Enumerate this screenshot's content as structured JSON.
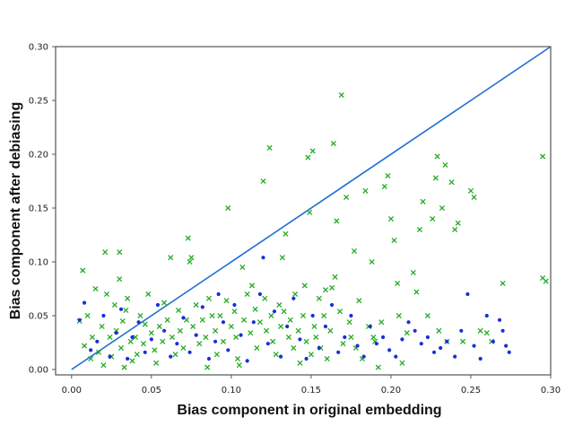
{
  "chart_data": {
    "type": "scatter",
    "title": "",
    "xlabel": "Bias component in original embedding",
    "ylabel": "Bias component after debiasing",
    "xlim": [
      -0.01,
      0.3
    ],
    "ylim": [
      -0.005,
      0.3
    ],
    "x_ticks": [
      0.0,
      0.05,
      0.1,
      0.15,
      0.2,
      0.25,
      0.3
    ],
    "x_tick_labels": [
      "0.00",
      "0.05",
      "0.10",
      "0.15",
      "0.20",
      "0.25",
      "0.30"
    ],
    "y_ticks": [
      0.0,
      0.05,
      0.1,
      0.15,
      0.2,
      0.25,
      0.3
    ],
    "y_tick_labels": [
      "0.00",
      "0.05",
      "0.10",
      "0.15",
      "0.20",
      "0.25",
      "0.30"
    ],
    "grid": false,
    "legend": "none",
    "reference_line": {
      "x": [
        0.0,
        0.3
      ],
      "y": [
        0.0,
        0.3
      ],
      "color": "#1f6fd0"
    },
    "series": [
      {
        "marker": "x",
        "color": "#22aa22",
        "points": [
          [
            0.005,
            0.045
          ],
          [
            0.007,
            0.092
          ],
          [
            0.008,
            0.022
          ],
          [
            0.01,
            0.05
          ],
          [
            0.012,
            0.01
          ],
          [
            0.013,
            0.03
          ],
          [
            0.015,
            0.075
          ],
          [
            0.017,
            0.016
          ],
          [
            0.019,
            0.04
          ],
          [
            0.02,
            0.004
          ],
          [
            0.021,
            0.109
          ],
          [
            0.022,
            0.07
          ],
          [
            0.024,
            0.03
          ],
          [
            0.025,
            0.012
          ],
          [
            0.027,
            0.06
          ],
          [
            0.028,
            0.036
          ],
          [
            0.03,
            0.109
          ],
          [
            0.03,
            0.084
          ],
          [
            0.031,
            0.02
          ],
          [
            0.032,
            0.045
          ],
          [
            0.033,
            0.002
          ],
          [
            0.034,
            0.055
          ],
          [
            0.035,
            0.066
          ],
          [
            0.037,
            0.026
          ],
          [
            0.038,
            0.008
          ],
          [
            0.04,
            0.03
          ],
          [
            0.041,
            0.014
          ],
          [
            0.043,
            0.05
          ],
          [
            0.045,
            0.024
          ],
          [
            0.046,
            0.042
          ],
          [
            0.048,
            0.07
          ],
          [
            0.05,
            0.034
          ],
          [
            0.052,
            0.018
          ],
          [
            0.053,
            0.006
          ],
          [
            0.055,
            0.04
          ],
          [
            0.057,
            0.026
          ],
          [
            0.058,
            0.062
          ],
          [
            0.06,
            0.046
          ],
          [
            0.062,
            0.104
          ],
          [
            0.063,
            0.03
          ],
          [
            0.065,
            0.014
          ],
          [
            0.067,
            0.055
          ],
          [
            0.068,
            0.036
          ],
          [
            0.07,
            0.02
          ],
          [
            0.072,
            0.046
          ],
          [
            0.073,
            0.122
          ],
          [
            0.074,
            0.1
          ],
          [
            0.075,
            0.104
          ],
          [
            0.076,
            0.04
          ],
          [
            0.078,
            0.06
          ],
          [
            0.08,
            0.024
          ],
          [
            0.082,
            0.046
          ],
          [
            0.084,
            0.03
          ],
          [
            0.085,
            0.002
          ],
          [
            0.086,
            0.066
          ],
          [
            0.088,
            0.05
          ],
          [
            0.09,
            0.036
          ],
          [
            0.091,
            0.014
          ],
          [
            0.093,
            0.05
          ],
          [
            0.095,
            0.026
          ],
          [
            0.097,
            0.064
          ],
          [
            0.098,
            0.15
          ],
          [
            0.1,
            0.04
          ],
          [
            0.102,
            0.054
          ],
          [
            0.103,
            0.03
          ],
          [
            0.104,
            0.01
          ],
          [
            0.105,
            0.004
          ],
          [
            0.107,
            0.095
          ],
          [
            0.108,
            0.046
          ],
          [
            0.11,
            0.07
          ],
          [
            0.112,
            0.034
          ],
          [
            0.113,
            0.078
          ],
          [
            0.115,
            0.056
          ],
          [
            0.116,
            0.02
          ],
          [
            0.118,
            0.044
          ],
          [
            0.12,
            0.175
          ],
          [
            0.121,
            0.066
          ],
          [
            0.122,
            0.036
          ],
          [
            0.124,
            0.206
          ],
          [
            0.125,
            0.05
          ],
          [
            0.126,
            0.026
          ],
          [
            0.128,
            0.014
          ],
          [
            0.13,
            0.06
          ],
          [
            0.131,
            0.04
          ],
          [
            0.132,
            0.104
          ],
          [
            0.133,
            0.054
          ],
          [
            0.134,
            0.126
          ],
          [
            0.136,
            0.03
          ],
          [
            0.137,
            0.046
          ],
          [
            0.139,
            0.02
          ],
          [
            0.14,
            0.07
          ],
          [
            0.142,
            0.036
          ],
          [
            0.143,
            0.006
          ],
          [
            0.145,
            0.05
          ],
          [
            0.146,
            0.078
          ],
          [
            0.147,
            0.026
          ],
          [
            0.148,
            0.197
          ],
          [
            0.149,
            0.146
          ],
          [
            0.15,
            0.014
          ],
          [
            0.151,
            0.203
          ],
          [
            0.152,
            0.04
          ],
          [
            0.153,
            0.03
          ],
          [
            0.155,
            0.066
          ],
          [
            0.156,
            0.02
          ],
          [
            0.158,
            0.05
          ],
          [
            0.159,
            0.074
          ],
          [
            0.16,
            0.01
          ],
          [
            0.162,
            0.036
          ],
          [
            0.163,
            0.076
          ],
          [
            0.164,
            0.21
          ],
          [
            0.165,
            0.086
          ],
          [
            0.166,
            0.138
          ],
          [
            0.168,
            0.054
          ],
          [
            0.169,
            0.255
          ],
          [
            0.17,
            0.024
          ],
          [
            0.172,
            0.16
          ],
          [
            0.174,
            0.044
          ],
          [
            0.175,
            0.03
          ],
          [
            0.177,
            0.11
          ],
          [
            0.178,
            0.02
          ],
          [
            0.18,
            0.064
          ],
          [
            0.182,
            0.01
          ],
          [
            0.184,
            0.166
          ],
          [
            0.186,
            0.04
          ],
          [
            0.188,
            0.1
          ],
          [
            0.189,
            0.03
          ],
          [
            0.19,
            0.026
          ],
          [
            0.192,
            0.002
          ],
          [
            0.194,
            0.044
          ],
          [
            0.196,
            0.17
          ],
          [
            0.198,
            0.18
          ],
          [
            0.2,
            0.14
          ],
          [
            0.202,
            0.12
          ],
          [
            0.204,
            0.08
          ],
          [
            0.205,
            0.05
          ],
          [
            0.207,
            0.006
          ],
          [
            0.21,
            0.034
          ],
          [
            0.214,
            0.09
          ],
          [
            0.216,
            0.072
          ],
          [
            0.218,
            0.13
          ],
          [
            0.22,
            0.156
          ],
          [
            0.223,
            0.05
          ],
          [
            0.226,
            0.14
          ],
          [
            0.228,
            0.178
          ],
          [
            0.229,
            0.198
          ],
          [
            0.23,
            0.036
          ],
          [
            0.232,
            0.15
          ],
          [
            0.234,
            0.19
          ],
          [
            0.235,
            0.026
          ],
          [
            0.238,
            0.174
          ],
          [
            0.24,
            0.13
          ],
          [
            0.242,
            0.136
          ],
          [
            0.245,
            0.026
          ],
          [
            0.25,
            0.166
          ],
          [
            0.252,
            0.16
          ],
          [
            0.256,
            0.036
          ],
          [
            0.26,
            0.034
          ],
          [
            0.263,
            0.026
          ],
          [
            0.27,
            0.08
          ],
          [
            0.295,
            0.198
          ],
          [
            0.295,
            0.085
          ],
          [
            0.297,
            0.082
          ]
        ]
      },
      {
        "marker": "dot",
        "color": "#1a2fd8",
        "points": [
          [
            0.005,
            0.046
          ],
          [
            0.008,
            0.062
          ],
          [
            0.012,
            0.018
          ],
          [
            0.016,
            0.026
          ],
          [
            0.02,
            0.05
          ],
          [
            0.024,
            0.012
          ],
          [
            0.028,
            0.034
          ],
          [
            0.031,
            0.056
          ],
          [
            0.035,
            0.01
          ],
          [
            0.038,
            0.03
          ],
          [
            0.042,
            0.044
          ],
          [
            0.046,
            0.016
          ],
          [
            0.05,
            0.028
          ],
          [
            0.054,
            0.06
          ],
          [
            0.058,
            0.036
          ],
          [
            0.062,
            0.012
          ],
          [
            0.066,
            0.024
          ],
          [
            0.07,
            0.048
          ],
          [
            0.074,
            0.016
          ],
          [
            0.078,
            0.032
          ],
          [
            0.082,
            0.058
          ],
          [
            0.086,
            0.01
          ],
          [
            0.09,
            0.026
          ],
          [
            0.092,
            0.07
          ],
          [
            0.095,
            0.044
          ],
          [
            0.098,
            0.018
          ],
          [
            0.102,
            0.06
          ],
          [
            0.106,
            0.032
          ],
          [
            0.11,
            0.008
          ],
          [
            0.114,
            0.044
          ],
          [
            0.118,
            0.07
          ],
          [
            0.12,
            0.104
          ],
          [
            0.123,
            0.024
          ],
          [
            0.127,
            0.054
          ],
          [
            0.131,
            0.012
          ],
          [
            0.135,
            0.04
          ],
          [
            0.139,
            0.066
          ],
          [
            0.143,
            0.028
          ],
          [
            0.147,
            0.01
          ],
          [
            0.151,
            0.05
          ],
          [
            0.155,
            0.02
          ],
          [
            0.159,
            0.04
          ],
          [
            0.163,
            0.06
          ],
          [
            0.167,
            0.016
          ],
          [
            0.171,
            0.03
          ],
          [
            0.175,
            0.05
          ],
          [
            0.179,
            0.022
          ],
          [
            0.183,
            0.012
          ],
          [
            0.187,
            0.04
          ],
          [
            0.191,
            0.024
          ],
          [
            0.195,
            0.03
          ],
          [
            0.199,
            0.018
          ],
          [
            0.203,
            0.012
          ],
          [
            0.207,
            0.028
          ],
          [
            0.211,
            0.044
          ],
          [
            0.215,
            0.036
          ],
          [
            0.219,
            0.024
          ],
          [
            0.223,
            0.03
          ],
          [
            0.227,
            0.016
          ],
          [
            0.231,
            0.02
          ],
          [
            0.235,
            0.026
          ],
          [
            0.24,
            0.012
          ],
          [
            0.244,
            0.036
          ],
          [
            0.248,
            0.07
          ],
          [
            0.252,
            0.022
          ],
          [
            0.256,
            0.01
          ],
          [
            0.26,
            0.05
          ],
          [
            0.264,
            0.026
          ],
          [
            0.268,
            0.046
          ],
          [
            0.27,
            0.036
          ],
          [
            0.272,
            0.022
          ],
          [
            0.274,
            0.016
          ]
        ]
      }
    ]
  }
}
